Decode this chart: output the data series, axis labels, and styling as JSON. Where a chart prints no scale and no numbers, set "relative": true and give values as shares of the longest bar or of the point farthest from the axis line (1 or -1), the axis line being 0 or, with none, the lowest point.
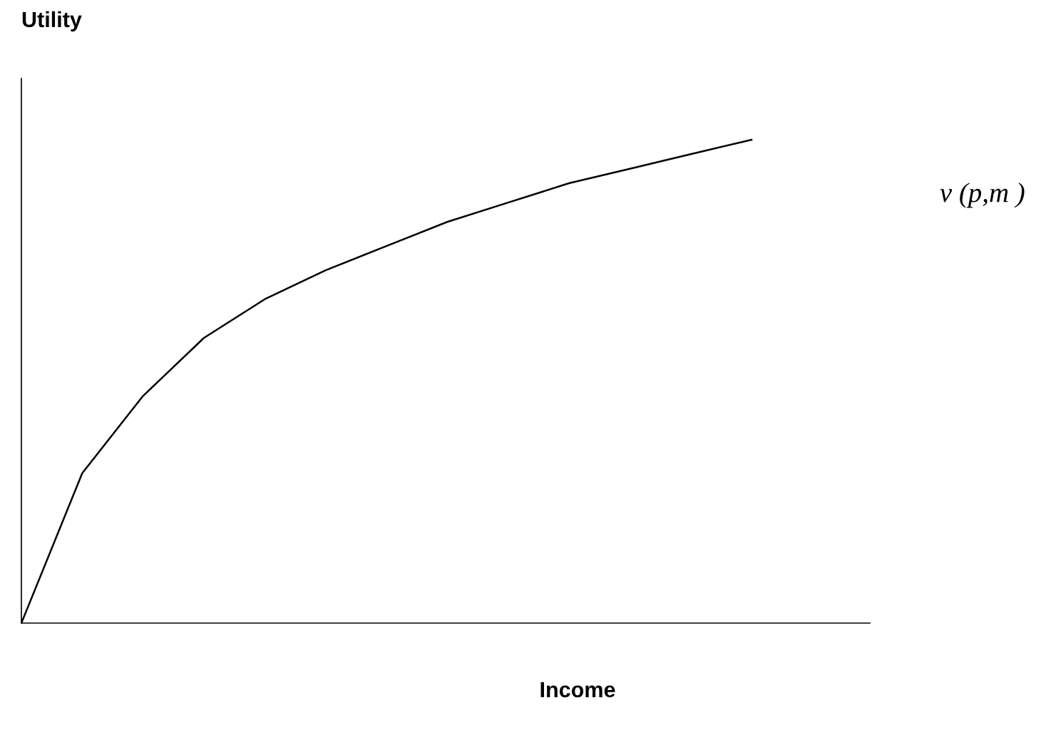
{
  "chart_data": {
    "type": "line",
    "relative": true,
    "xlabel": "Income",
    "ylabel": "Utility",
    "categories": [
      null,
      null,
      null,
      null,
      null,
      null,
      null,
      null,
      null,
      null,
      null,
      null,
      null
    ],
    "series": [
      {
        "name": "v (p,m )",
        "color": "#000000",
        "values": [
          0,
          0.31,
          0.47,
          0.59,
          0.67,
          0.73,
          0.78,
          0.83,
          0.87,
          0.91,
          0.94,
          0.97,
          1.0
        ]
      }
    ]
  }
}
